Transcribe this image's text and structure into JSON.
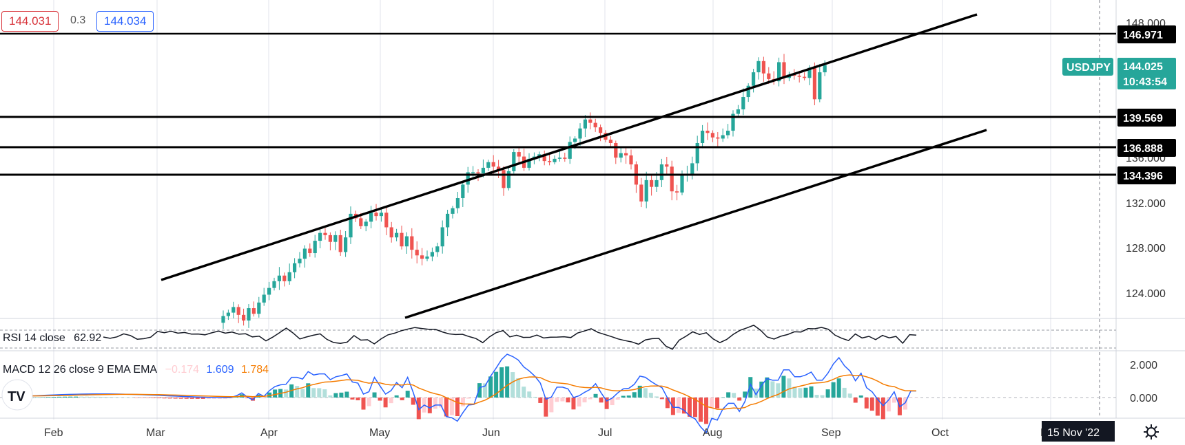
{
  "header": {
    "bid": "144.031",
    "spread": "0.3",
    "ask": "144.034"
  },
  "symbol": {
    "name": "USDJPY",
    "price": "144.025",
    "countdown": "10:43:54"
  },
  "levels": [
    "146.971",
    "139.569",
    "136.888",
    "134.396"
  ],
  "crosshair_date": "15 Nov '22",
  "colors": {
    "up": "#26a69a",
    "down": "#ef5350",
    "macd": "#2962ff",
    "signal": "#f57c00",
    "hist_up": "#26a69a",
    "hist_up_light": "#b2dfdb",
    "hist_down": "#ef5350",
    "hist_down_light": "#ffcdd2"
  },
  "rsi": {
    "label": "RSI 14 close",
    "value": "62.92"
  },
  "macd": {
    "label": "MACD 12 26 close 9 EMA EMA",
    "hist": "−0.174",
    "macd": "1.609",
    "signal": "1.784"
  },
  "settings_icon": "gear-icon",
  "chart_data": {
    "type": "candlestick",
    "x_ticks": [
      "Feb",
      "Mar",
      "Apr",
      "May",
      "Jun",
      "Jul",
      "Aug",
      "Sep",
      "Oct",
      "N"
    ],
    "y_ticks": [
      "148.000",
      "136.000",
      "132.000",
      "128.000",
      "124.000"
    ],
    "ylim": [
      122.2,
      149.4
    ],
    "close_series": [
      121.7,
      122.0,
      122.5,
      121.8,
      121.3,
      122.4,
      121.9,
      122.9,
      123.6,
      124.2,
      124.8,
      125.3,
      124.8,
      125.6,
      126.4,
      126.8,
      127.7,
      127.3,
      128.4,
      129.1,
      128.9,
      128.3,
      128.9,
      127.4,
      128.7,
      130.8,
      130.4,
      129.7,
      130.1,
      130.9,
      130.6,
      130.9,
      129.6,
      128.7,
      129.1,
      127.9,
      128.8,
      127.6,
      127.1,
      126.8,
      127.0,
      127.4,
      127.9,
      129.6,
      130.8,
      131.3,
      132.2,
      133.4,
      134.5,
      134.5,
      134.4,
      134.9,
      135.4,
      135.0,
      134.7,
      133.1,
      134.6,
      136.3,
      135.9,
      134.9,
      135.7,
      135.9,
      136.1,
      135.5,
      135.4,
      135.7,
      135.8,
      135.7,
      137.2,
      137.5,
      138.4,
      139.2,
      138.9,
      138.5,
      138.0,
      137.4,
      137.1,
      135.8,
      136.2,
      136.0,
      135.2,
      133.4,
      131.9,
      133.8,
      133.2,
      133.8,
      135.2,
      135.0,
      132.8,
      132.7,
      134.2,
      134.3,
      135.3,
      137.1,
      138.2,
      138.0,
      137.6,
      137.5,
      137.8,
      138.2,
      139.7,
      140.1,
      141.2,
      142.2,
      143.4,
      144.4,
      143.3,
      142.8,
      142.6,
      144.3,
      142.9,
      143.2,
      143.1,
      143.0,
      142.9,
      143.8,
      141.0,
      143.4,
      144.03
    ],
    "lines": [
      {
        "name": "upper channel",
        "from": [
          "mid Mar",
          125.1
        ],
        "to": [
          "mid Oct",
          148.8
        ]
      },
      {
        "name": "lower channel",
        "from": [
          "May",
          122.4
        ],
        "to": [
          "mid Oct",
          138.6
        ]
      }
    ],
    "rsi_value": 62.92,
    "macd_values": {
      "histogram": -0.174,
      "macd": 1.609,
      "signal": 1.784
    },
    "macd_ticks": [
      "2.000",
      "0.000"
    ]
  }
}
